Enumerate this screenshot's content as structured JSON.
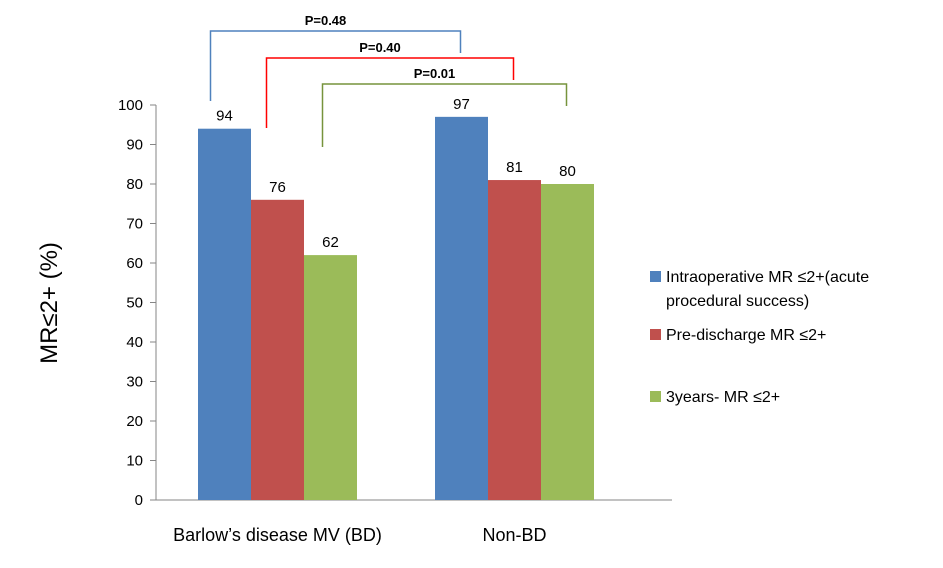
{
  "chart_data": {
    "type": "bar",
    "ylabel": "MR≤2+ (%)",
    "ylim": [
      0,
      100
    ],
    "yticks": [
      0,
      10,
      20,
      30,
      40,
      50,
      60,
      70,
      80,
      90,
      100
    ],
    "categories": [
      "Barlow’s disease MV (BD)",
      "Non-BD"
    ],
    "series": [
      {
        "name": "Intraoperative MR  ≤2+(acute procedural success)",
        "legend_lines": [
          "Intraoperative MR  ≤2+(acute",
          "procedural success)"
        ],
        "color": "#4F81BD",
        "values": [
          94,
          97
        ]
      },
      {
        "name": "Pre-discharge MR ≤2+",
        "legend_lines": [
          "Pre-discharge MR ≤2+"
        ],
        "color": "#C0504D",
        "values": [
          76,
          81
        ]
      },
      {
        "name": "3years- MR  ≤2+",
        "legend_lines": [
          "3years- MR  ≤2+"
        ],
        "color": "#9BBB59",
        "values": [
          62,
          80
        ]
      }
    ],
    "annotations": [
      {
        "text": "P=0.48",
        "series": 0,
        "color": "#4F81BD"
      },
      {
        "text": "P=0.40",
        "series": 1,
        "color": "#FF0000"
      },
      {
        "text": "P=0.01",
        "series": 2,
        "color": "#77933C"
      }
    ],
    "legend_position": "right",
    "grid": false
  }
}
